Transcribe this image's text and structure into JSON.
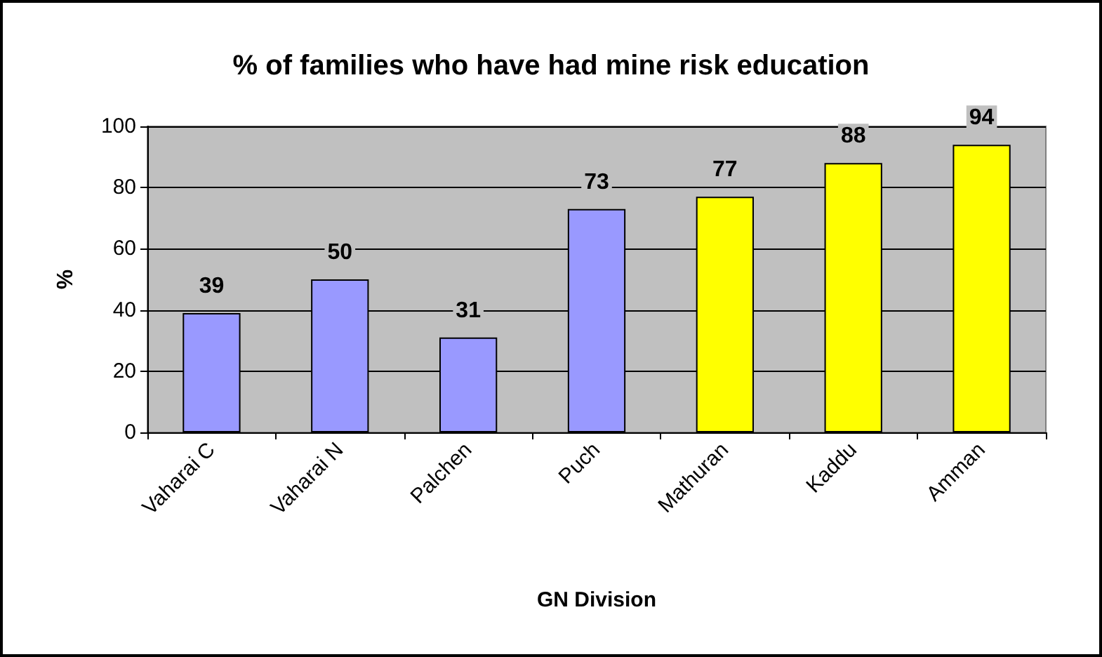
{
  "chart_data": {
    "type": "bar",
    "title": "% of families who have had mine risk education",
    "xlabel": "GN Division",
    "ylabel": "%",
    "categories": [
      "Vaharai C",
      "Vaharai N",
      "Palchen",
      "Puch",
      "Mathuran",
      "Kaddu",
      "Amman"
    ],
    "values": [
      39,
      50,
      31,
      73,
      77,
      88,
      94
    ],
    "colors": [
      "#9999ff",
      "#9999ff",
      "#9999ff",
      "#9999ff",
      "#ffff00",
      "#ffff00",
      "#ffff00"
    ],
    "ylim": [
      0,
      100
    ],
    "yticks": [
      0,
      20,
      40,
      60,
      80,
      100
    ],
    "grid": "y",
    "data_labels": true
  }
}
